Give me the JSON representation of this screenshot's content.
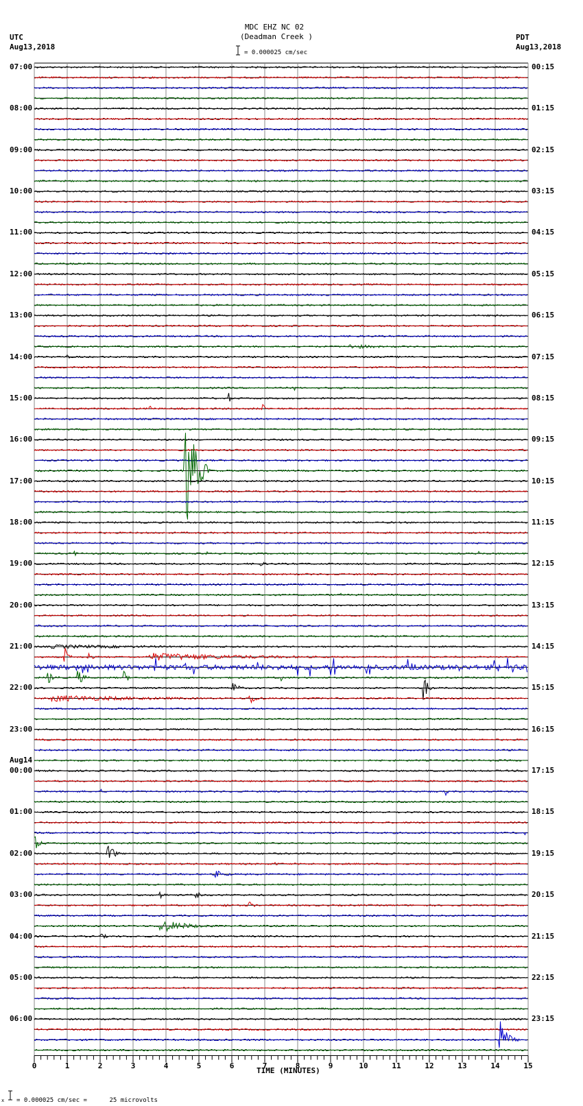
{
  "header": {
    "station_line": "MDC EHZ NC 02",
    "site_name": "(Deadman Creek )",
    "scale_text": "= 0.000025 cm/sec",
    "left_tz": "UTC",
    "left_date": "Aug13,2018",
    "right_tz": "PDT",
    "right_date": "Aug13,2018"
  },
  "footer": {
    "scale_note": "= 0.000025 cm/sec =      25 microvolts",
    "prefix_glyph": "x"
  },
  "colors": {
    "trace_cycle": [
      "#000000",
      "#dd0000",
      "#0000cc",
      "#006600"
    ],
    "grid": "#888888",
    "axis": "#000000"
  },
  "chart_data": {
    "type": "line",
    "title": "MDC EHZ NC 02 (Deadman Creek) helicorder",
    "xlabel": "TIME (MINUTES)",
    "ylabel": "",
    "x_ticks": [
      "0",
      "1",
      "2",
      "3",
      "4",
      "5",
      "6",
      "7",
      "8",
      "9",
      "10",
      "11",
      "12",
      "13",
      "14",
      "15"
    ],
    "xlim": [
      0,
      15
    ],
    "grid": true,
    "traces_per_hour": 4,
    "trace_count": 96,
    "left_hour_labels": [
      {
        "row": 0,
        "label": "07:00"
      },
      {
        "row": 4,
        "label": "08:00"
      },
      {
        "row": 8,
        "label": "09:00"
      },
      {
        "row": 12,
        "label": "10:00"
      },
      {
        "row": 16,
        "label": "11:00"
      },
      {
        "row": 20,
        "label": "12:00"
      },
      {
        "row": 24,
        "label": "13:00"
      },
      {
        "row": 28,
        "label": "14:00"
      },
      {
        "row": 32,
        "label": "15:00"
      },
      {
        "row": 36,
        "label": "16:00"
      },
      {
        "row": 40,
        "label": "17:00"
      },
      {
        "row": 44,
        "label": "18:00"
      },
      {
        "row": 48,
        "label": "19:00"
      },
      {
        "row": 52,
        "label": "20:00"
      },
      {
        "row": 56,
        "label": "21:00"
      },
      {
        "row": 60,
        "label": "22:00"
      },
      {
        "row": 64,
        "label": "23:00"
      },
      {
        "row": 67,
        "label": "Aug14"
      },
      {
        "row": 68,
        "label": "00:00"
      },
      {
        "row": 72,
        "label": "01:00"
      },
      {
        "row": 76,
        "label": "02:00"
      },
      {
        "row": 80,
        "label": "03:00"
      },
      {
        "row": 84,
        "label": "04:00"
      },
      {
        "row": 88,
        "label": "05:00"
      },
      {
        "row": 92,
        "label": "06:00"
      }
    ],
    "right_hour_labels": [
      {
        "row": 0,
        "label": "00:15"
      },
      {
        "row": 4,
        "label": "01:15"
      },
      {
        "row": 8,
        "label": "02:15"
      },
      {
        "row": 12,
        "label": "03:15"
      },
      {
        "row": 16,
        "label": "04:15"
      },
      {
        "row": 20,
        "label": "05:15"
      },
      {
        "row": 24,
        "label": "06:15"
      },
      {
        "row": 28,
        "label": "07:15"
      },
      {
        "row": 32,
        "label": "08:15"
      },
      {
        "row": 36,
        "label": "09:15"
      },
      {
        "row": 40,
        "label": "10:15"
      },
      {
        "row": 44,
        "label": "11:15"
      },
      {
        "row": 48,
        "label": "12:15"
      },
      {
        "row": 52,
        "label": "13:15"
      },
      {
        "row": 56,
        "label": "14:15"
      },
      {
        "row": 60,
        "label": "15:15"
      },
      {
        "row": 64,
        "label": "16:15"
      },
      {
        "row": 68,
        "label": "17:15"
      },
      {
        "row": 72,
        "label": "18:15"
      },
      {
        "row": 76,
        "label": "19:15"
      },
      {
        "row": 80,
        "label": "20:15"
      },
      {
        "row": 84,
        "label": "21:15"
      },
      {
        "row": 88,
        "label": "22:15"
      },
      {
        "row": 92,
        "label": "23:15"
      }
    ],
    "events": [
      {
        "row": 13,
        "minute": 0.3,
        "amp": 2,
        "dur": 0.4
      },
      {
        "row": 13,
        "minute": 5.9,
        "amp": 4,
        "dur": 0.2
      },
      {
        "row": 17,
        "minute": 0.4,
        "amp": 3,
        "dur": 0.3
      },
      {
        "row": 24,
        "minute": 14.0,
        "amp": 2,
        "dur": 0.9
      },
      {
        "row": 27,
        "minute": 9.5,
        "amp": 4,
        "dur": 3.0
      },
      {
        "row": 28,
        "minute": 1.0,
        "amp": 3,
        "dur": 0.4
      },
      {
        "row": 31,
        "minute": 7.9,
        "amp": 5,
        "dur": 0.1
      },
      {
        "row": 32,
        "minute": 5.9,
        "amp": 9,
        "dur": 0.2
      },
      {
        "row": 33,
        "minute": 3.5,
        "amp": 6,
        "dur": 0.3
      },
      {
        "row": 33,
        "minute": 6.9,
        "amp": 8,
        "dur": 0.4
      },
      {
        "row": 34,
        "minute": 9.6,
        "amp": 3,
        "dur": 0.3
      },
      {
        "row": 35,
        "minute": 1.5,
        "amp": 3,
        "dur": 0.1
      },
      {
        "row": 39,
        "minute": 4.55,
        "amp": 120,
        "dur": 0.8,
        "big": true
      },
      {
        "row": 47,
        "minute": 1.2,
        "amp": 5,
        "dur": 0.3
      },
      {
        "row": 47,
        "minute": 5.2,
        "amp": 6,
        "dur": 0.2
      },
      {
        "row": 47,
        "minute": 11.3,
        "amp": 5,
        "dur": 0.1
      },
      {
        "row": 47,
        "minute": 13.5,
        "amp": 5,
        "dur": 0.2
      },
      {
        "row": 48,
        "minute": 6.8,
        "amp": 5,
        "dur": 0.6
      },
      {
        "row": 51,
        "minute": 9.3,
        "amp": 4,
        "dur": 0.1
      },
      {
        "row": 54,
        "minute": 0.1,
        "amp": 10,
        "dur": 0.1
      },
      {
        "row": 56,
        "minute": 0.5,
        "amp": 3,
        "dur": 14.0
      },
      {
        "row": 57,
        "minute": 0.9,
        "amp": 20,
        "dur": 0.3
      },
      {
        "row": 57,
        "minute": 1.6,
        "amp": 14,
        "dur": 0.3
      },
      {
        "row": 57,
        "minute": 3.5,
        "amp": 6,
        "dur": 10.0
      },
      {
        "row": 58,
        "minute": 0.0,
        "amp": 14,
        "dur": 15.0,
        "busy": true
      },
      {
        "row": 59,
        "minute": 0.4,
        "amp": 10,
        "dur": 0.6
      },
      {
        "row": 59,
        "minute": 1.3,
        "amp": 14,
        "dur": 0.5
      },
      {
        "row": 59,
        "minute": 2.7,
        "amp": 12,
        "dur": 0.4
      },
      {
        "row": 59,
        "minute": 7.5,
        "amp": 6,
        "dur": 0.3
      },
      {
        "row": 60,
        "minute": 6.0,
        "amp": 12,
        "dur": 0.5
      },
      {
        "row": 60,
        "minute": 11.8,
        "amp": 22,
        "dur": 0.4
      },
      {
        "row": 61,
        "minute": 0.5,
        "amp": 5,
        "dur": 10.0
      },
      {
        "row": 61,
        "minute": 6.5,
        "amp": 10,
        "dur": 0.8
      },
      {
        "row": 65,
        "minute": 10.8,
        "amp": 6,
        "dur": 0.1
      },
      {
        "row": 66,
        "minute": 4.3,
        "amp": 3,
        "dur": 0.2
      },
      {
        "row": 70,
        "minute": 2.0,
        "amp": 5,
        "dur": 0.2
      },
      {
        "row": 70,
        "minute": 12.5,
        "amp": 6,
        "dur": 0.2
      },
      {
        "row": 74,
        "minute": 14.9,
        "amp": 5,
        "dur": 0.1
      },
      {
        "row": 75,
        "minute": 0.0,
        "amp": 12,
        "dur": 0.5
      },
      {
        "row": 76,
        "minute": 2.2,
        "amp": 22,
        "dur": 0.5
      },
      {
        "row": 77,
        "minute": 7.3,
        "amp": 5,
        "dur": 0.2
      },
      {
        "row": 78,
        "minute": 5.5,
        "amp": 6,
        "dur": 1.0
      },
      {
        "row": 80,
        "minute": 3.8,
        "amp": 8,
        "dur": 0.4
      },
      {
        "row": 80,
        "minute": 4.9,
        "amp": 7,
        "dur": 0.4
      },
      {
        "row": 81,
        "minute": 5.7,
        "amp": 7,
        "dur": 0.4
      },
      {
        "row": 81,
        "minute": 6.5,
        "amp": 8,
        "dur": 0.4
      },
      {
        "row": 83,
        "minute": 3.8,
        "amp": 10,
        "dur": 2.5
      },
      {
        "row": 83,
        "minute": 13.6,
        "amp": 6,
        "dur": 0.2
      },
      {
        "row": 84,
        "minute": 2.0,
        "amp": 4,
        "dur": 0.9
      },
      {
        "row": 94,
        "minute": 14.1,
        "amp": 40,
        "dur": 0.6
      }
    ]
  },
  "axis": {
    "x_label": "TIME (MINUTES)"
  }
}
